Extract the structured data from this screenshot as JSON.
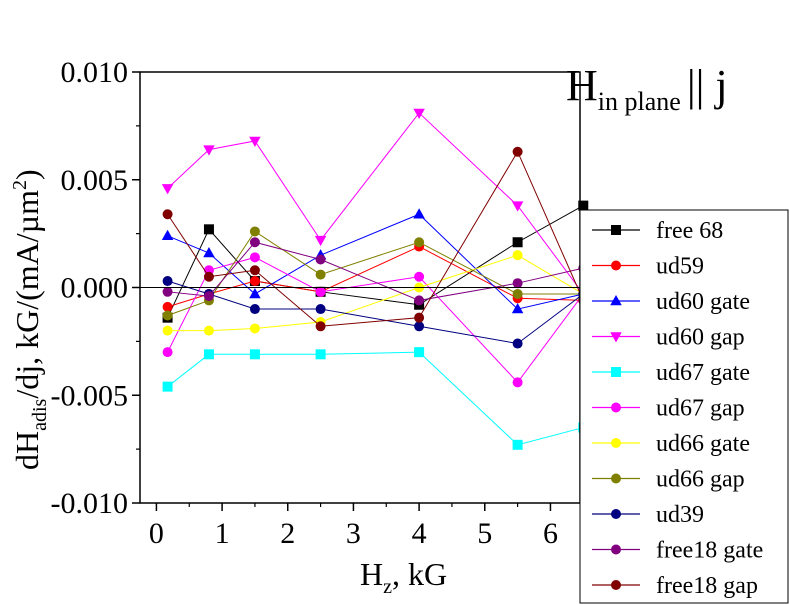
{
  "chart_data": {
    "type": "line",
    "annotation": {
      "main": "H",
      "sub": "in plane",
      "tail": "|| j"
    },
    "xlabel": {
      "main": "H",
      "sub": "z",
      "tail": ", kG"
    },
    "ylabel": {
      "main": "dH",
      "sub": "adis",
      "tail": "/dj, kG/(mA/µm",
      "sup": "2",
      "close": ")"
    },
    "xlim": [
      -0.25,
      6.45
    ],
    "ylim": [
      -0.01,
      0.01
    ],
    "xticks": [
      0,
      1,
      2,
      3,
      4,
      5,
      6
    ],
    "yticks": [
      {
        "value": 0.01,
        "label": "0.010"
      },
      {
        "value": 0.005,
        "label": "0.005"
      },
      {
        "value": 0.0,
        "label": "0.000"
      },
      {
        "value": -0.005,
        "label": "-0.005"
      },
      {
        "value": -0.01,
        "label": "-0.010"
      }
    ],
    "grid": false,
    "legend_position": "right",
    "x": [
      0.17,
      0.8,
      1.5,
      2.5,
      4.0,
      5.5,
      6.5
    ],
    "series": [
      {
        "name": "free 68",
        "color": "#000000",
        "marker": "square",
        "values": [
          -0.0014,
          0.0027,
          0.0003,
          -0.0002,
          -0.0008,
          0.0021,
          0.0038
        ]
      },
      {
        "name": "ud59",
        "color": "#ff0000",
        "marker": "circle",
        "values": [
          -0.0009,
          -0.0003,
          0.0003,
          -0.0002,
          0.0019,
          -0.0005,
          -0.0006
        ]
      },
      {
        "name": "ud60 gate",
        "color": "#0000ff",
        "marker": "triangle-up",
        "values": [
          0.0024,
          0.0016,
          -0.0003,
          0.0015,
          0.0034,
          -0.001,
          -0.0003
        ]
      },
      {
        "name": "ud60 gap",
        "color": "#ff00ff",
        "marker": "triangle-down",
        "values": [
          0.0046,
          0.0064,
          0.0068,
          0.0022,
          0.0081,
          0.0038,
          -0.0003
        ]
      },
      {
        "name": "ud67 gate",
        "color": "#00ffff",
        "marker": "square",
        "values": [
          -0.0046,
          -0.0031,
          -0.0031,
          -0.0031,
          -0.003,
          -0.0073,
          -0.0065
        ]
      },
      {
        "name": "ud67 gap",
        "color": "#ff00ff",
        "marker": "circle",
        "values": [
          -0.003,
          0.0008,
          0.0014,
          -0.0002,
          0.0005,
          -0.0044,
          -0.0003
        ]
      },
      {
        "name": "ud66 gate",
        "color": "#ffff00",
        "marker": "circle",
        "values": [
          -0.002,
          -0.002,
          -0.0019,
          -0.0016,
          0.0,
          0.0015,
          -0.0003
        ]
      },
      {
        "name": "ud66 gap",
        "color": "#808000",
        "marker": "circle",
        "values": [
          -0.0013,
          -0.0006,
          0.0026,
          0.0006,
          0.0021,
          -0.0003,
          -0.0003
        ]
      },
      {
        "name": "ud39",
        "color": "#000080",
        "marker": "circle",
        "values": [
          0.0003,
          -0.0003,
          -0.001,
          -0.001,
          -0.0018,
          -0.0026,
          -0.0003
        ]
      },
      {
        "name": "free18 gate",
        "color": "#800080",
        "marker": "circle",
        "values": [
          -0.0002,
          -0.0004,
          0.0021,
          0.0013,
          -0.0006,
          0.0002,
          0.0009
        ]
      },
      {
        "name": "free18 gap",
        "color": "#800000",
        "marker": "circle",
        "values": [
          0.0034,
          0.0005,
          0.0008,
          -0.0018,
          -0.0014,
          0.0063,
          -0.0006
        ]
      }
    ]
  }
}
